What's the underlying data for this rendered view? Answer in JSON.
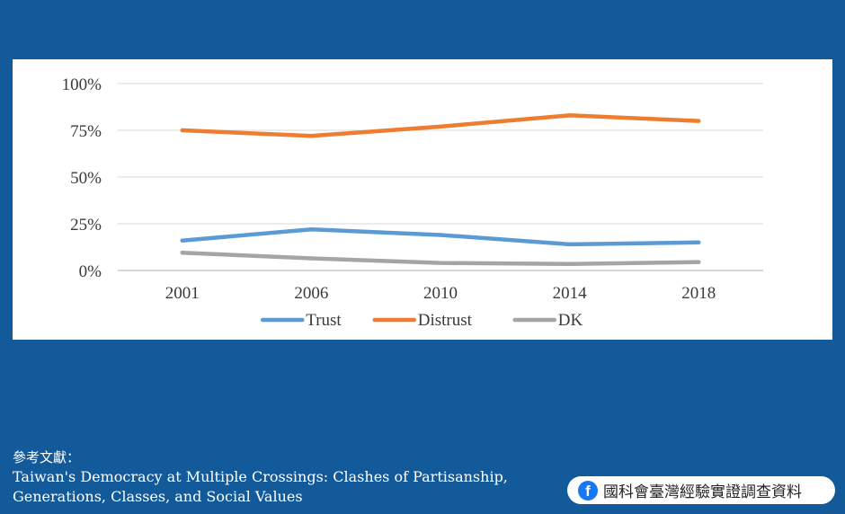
{
  "chart_data": {
    "type": "line",
    "x": [
      "2001",
      "2006",
      "2010",
      "2014",
      "2018"
    ],
    "series": [
      {
        "name": "Trust",
        "values": [
          16,
          22,
          19,
          14,
          15
        ],
        "color": "#5b9bd5"
      },
      {
        "name": "Distrust",
        "values": [
          75,
          72,
          77,
          83,
          80
        ],
        "color": "#ed7d31"
      },
      {
        "name": "DK",
        "values": [
          9.5,
          6.5,
          4,
          3.5,
          4.5
        ],
        "color": "#a5a5a5"
      }
    ],
    "ylim": [
      0,
      100
    ],
    "yticks": [
      0,
      25,
      50,
      75,
      100
    ],
    "ytick_labels": [
      "0%",
      "25%",
      "50%",
      "75%",
      "100%"
    ],
    "grid": true,
    "legend": "bottom"
  },
  "reference": {
    "heading": "參考文獻：",
    "line1": "Taiwan's Democracy at Multiple Crossings: Clashes of Partisanship,",
    "line2": "Generations, Classes, and Social Values"
  },
  "source": {
    "icon": "facebook-icon",
    "icon_glyph": "f",
    "text": "國科會臺灣經驗實證調查資料"
  },
  "colors": {
    "background": "#135a9a",
    "panel": "#ffffff"
  }
}
